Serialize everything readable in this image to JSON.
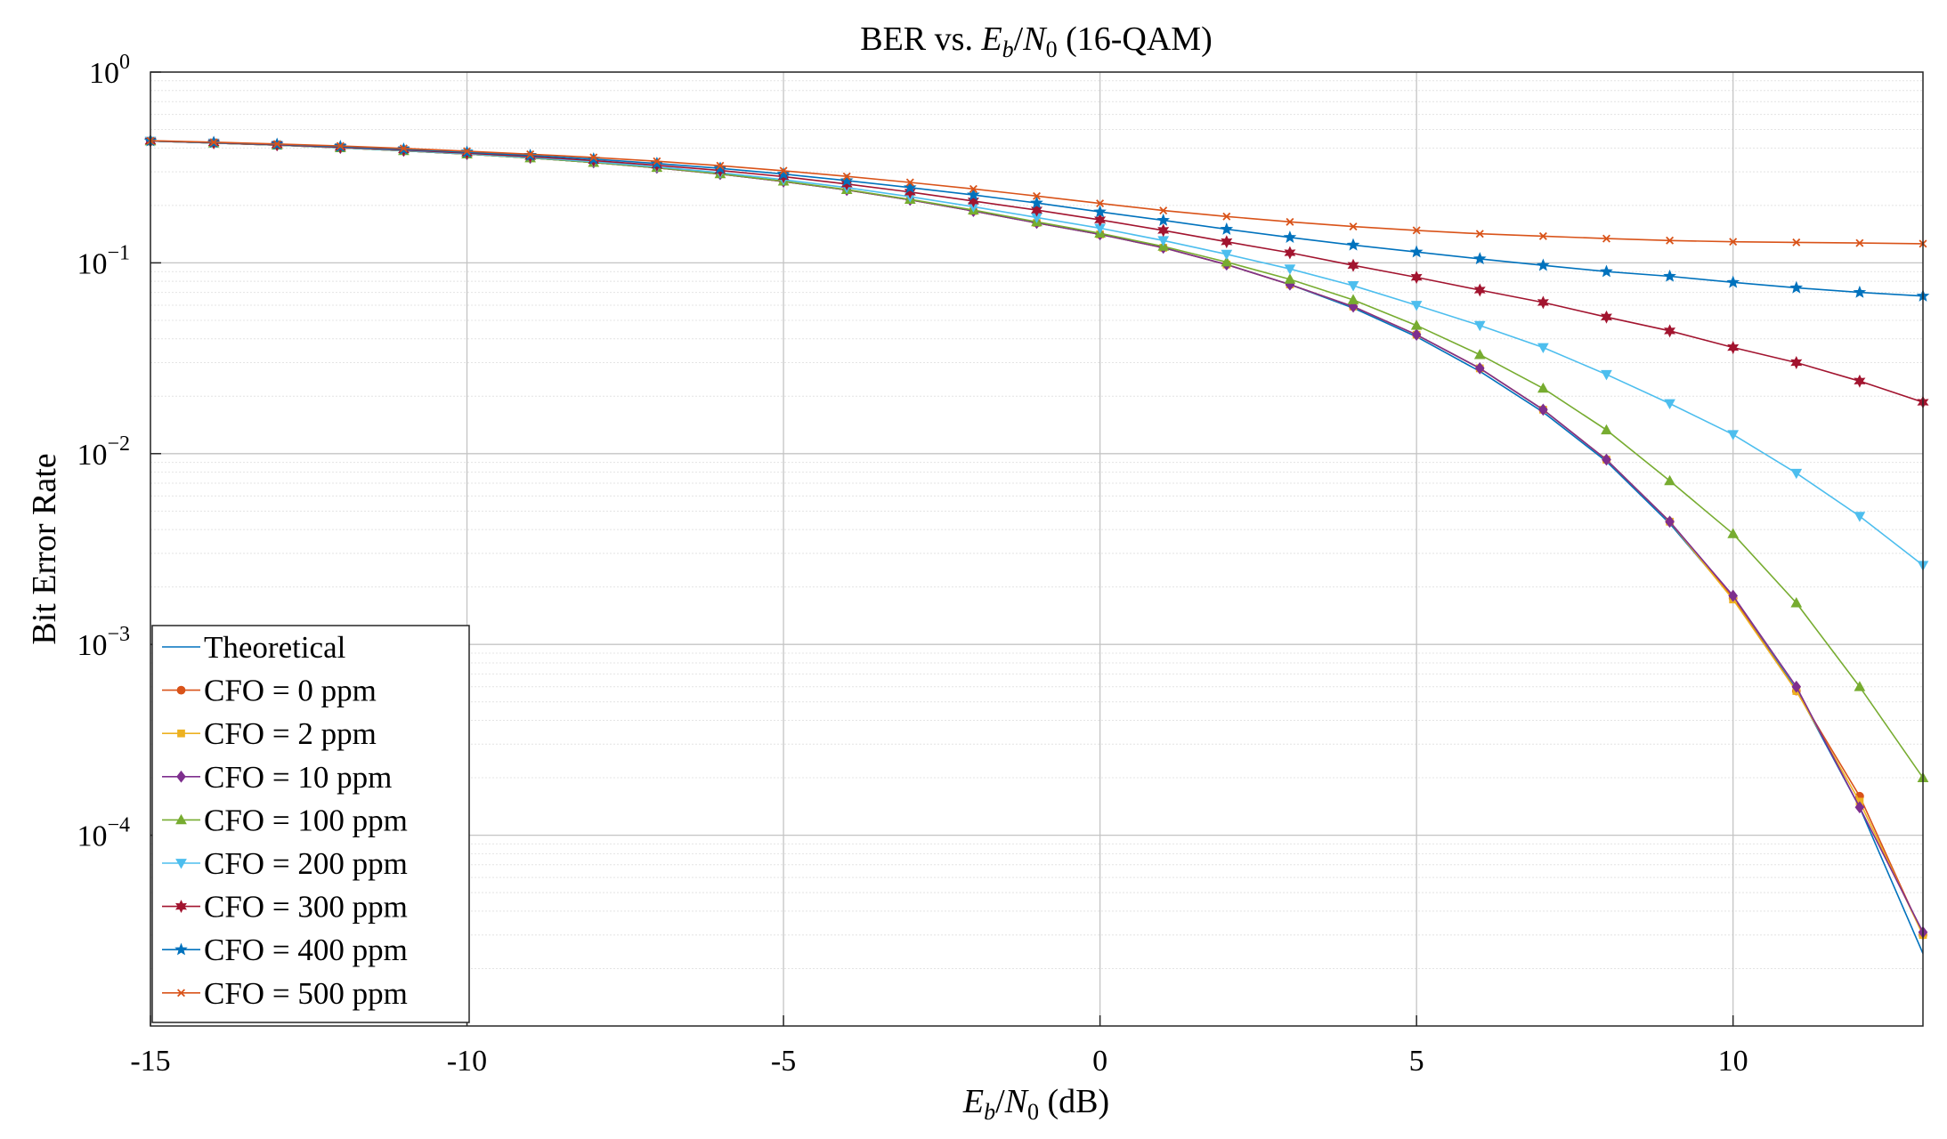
{
  "chart_data": {
    "type": "line",
    "title": {
      "prefix": "BER vs. ",
      "var_main": "E",
      "var_sub": "b",
      "slash": "/",
      "var2_main": "N",
      "var2_sub": "0",
      "suffix": " (16-QAM)"
    },
    "xlabel": {
      "var_main": "E",
      "var_sub": "b",
      "slash": "/",
      "var2_main": "N",
      "var2_sub": "0",
      "suffix": " (dB)"
    },
    "ylabel": "Bit Error Rate",
    "xlim": [
      -15,
      13
    ],
    "ylim": [
      1e-05,
      1
    ],
    "yscale": "log",
    "grid": true,
    "minor_grid": true,
    "legend_position": "bottom-left",
    "x_ticks": [
      -15,
      -10,
      -5,
      0,
      5,
      10
    ],
    "x_tick_labels": [
      "-15",
      "-10",
      "-5",
      "0",
      "5",
      "10"
    ],
    "y_ticks": [
      {
        "value": 1,
        "base": "10",
        "exp": "0"
      },
      {
        "value": 0.1,
        "base": "10",
        "exp": "−1"
      },
      {
        "value": 0.01,
        "base": "10",
        "exp": "−2"
      },
      {
        "value": 0.001,
        "base": "10",
        "exp": "−3"
      },
      {
        "value": 0.0001,
        "base": "10",
        "exp": "−4"
      }
    ],
    "x": [
      -15,
      -14,
      -13,
      -12,
      -11,
      -10,
      -9,
      -8,
      -7,
      -6,
      -5,
      -4,
      -3,
      -2,
      -1,
      0,
      1,
      2,
      3,
      4,
      5,
      6,
      7,
      8,
      9,
      10,
      11,
      12,
      13
    ],
    "series": [
      {
        "name": "Theoretical",
        "color": "#0072BD",
        "marker": "none",
        "values": [
          0.435,
          0.425,
          0.414,
          0.401,
          0.387,
          0.372,
          0.355,
          0.336,
          0.315,
          0.292,
          0.267,
          0.241,
          0.214,
          0.187,
          0.162,
          0.141,
          0.12,
          0.098,
          0.077,
          0.058,
          0.041,
          0.027,
          0.0165,
          0.0091,
          0.0043,
          0.00175,
          0.00058,
          0.00014,
          2.4e-05
        ]
      },
      {
        "name": "CFO = 0 ppm",
        "color": "#D95319",
        "marker": "circle",
        "values": [
          0.435,
          0.425,
          0.414,
          0.401,
          0.387,
          0.372,
          0.355,
          0.336,
          0.315,
          0.292,
          0.267,
          0.241,
          0.214,
          0.187,
          0.162,
          0.141,
          0.12,
          0.098,
          0.077,
          0.059,
          0.042,
          0.028,
          0.017,
          0.0093,
          0.0044,
          0.00175,
          0.00057,
          0.00016,
          3e-05
        ]
      },
      {
        "name": "CFO = 2 ppm",
        "color": "#EDB120",
        "marker": "square",
        "values": [
          0.435,
          0.425,
          0.414,
          0.401,
          0.387,
          0.372,
          0.355,
          0.336,
          0.315,
          0.292,
          0.267,
          0.241,
          0.214,
          0.187,
          0.162,
          0.141,
          0.12,
          0.098,
          0.077,
          0.059,
          0.042,
          0.028,
          0.017,
          0.0093,
          0.0044,
          0.00172,
          0.00057,
          0.00015,
          3e-05
        ]
      },
      {
        "name": "CFO = 10 ppm",
        "color": "#7E2F8E",
        "marker": "diamond",
        "values": [
          0.435,
          0.425,
          0.414,
          0.401,
          0.387,
          0.372,
          0.355,
          0.336,
          0.315,
          0.292,
          0.267,
          0.241,
          0.214,
          0.187,
          0.162,
          0.141,
          0.12,
          0.098,
          0.077,
          0.059,
          0.042,
          0.028,
          0.017,
          0.0093,
          0.0044,
          0.0018,
          0.0006,
          0.00014,
          3.1e-05
        ]
      },
      {
        "name": "CFO = 100 ppm",
        "color": "#77AC30",
        "marker": "triangle-up",
        "values": [
          0.435,
          0.425,
          0.414,
          0.401,
          0.387,
          0.372,
          0.355,
          0.336,
          0.316,
          0.293,
          0.268,
          0.242,
          0.215,
          0.189,
          0.164,
          0.143,
          0.122,
          0.101,
          0.082,
          0.064,
          0.047,
          0.033,
          0.022,
          0.0133,
          0.0072,
          0.0038,
          0.00165,
          0.0006,
          0.0002
        ]
      },
      {
        "name": "CFO = 200 ppm",
        "color": "#4DBEEE",
        "marker": "triangle-down",
        "values": [
          0.435,
          0.425,
          0.415,
          0.402,
          0.388,
          0.373,
          0.357,
          0.339,
          0.319,
          0.297,
          0.273,
          0.248,
          0.222,
          0.197,
          0.173,
          0.152,
          0.131,
          0.111,
          0.093,
          0.076,
          0.06,
          0.047,
          0.036,
          0.026,
          0.0183,
          0.0126,
          0.0079,
          0.0047,
          0.0026
        ]
      },
      {
        "name": "CFO = 300 ppm",
        "color": "#A2142F",
        "marker": "hexagram",
        "values": [
          0.435,
          0.426,
          0.416,
          0.404,
          0.391,
          0.376,
          0.361,
          0.344,
          0.325,
          0.305,
          0.283,
          0.259,
          0.235,
          0.211,
          0.189,
          0.168,
          0.148,
          0.129,
          0.113,
          0.097,
          0.084,
          0.072,
          0.062,
          0.052,
          0.044,
          0.036,
          0.03,
          0.024,
          0.0186
        ]
      },
      {
        "name": "CFO = 400 ppm",
        "color": "#0072BD",
        "marker": "pentagram",
        "values": [
          0.436,
          0.427,
          0.418,
          0.407,
          0.394,
          0.38,
          0.366,
          0.35,
          0.332,
          0.313,
          0.292,
          0.27,
          0.248,
          0.227,
          0.206,
          0.185,
          0.167,
          0.15,
          0.136,
          0.124,
          0.114,
          0.105,
          0.097,
          0.09,
          0.085,
          0.079,
          0.074,
          0.07,
          0.067
        ]
      },
      {
        "name": "CFO = 500 ppm",
        "color": "#D95319",
        "marker": "x",
        "values": [
          0.437,
          0.429,
          0.42,
          0.41,
          0.398,
          0.385,
          0.371,
          0.357,
          0.341,
          0.323,
          0.304,
          0.284,
          0.264,
          0.244,
          0.224,
          0.205,
          0.188,
          0.175,
          0.164,
          0.155,
          0.148,
          0.142,
          0.138,
          0.134,
          0.131,
          0.129,
          0.128,
          0.127,
          0.126
        ]
      }
    ]
  }
}
